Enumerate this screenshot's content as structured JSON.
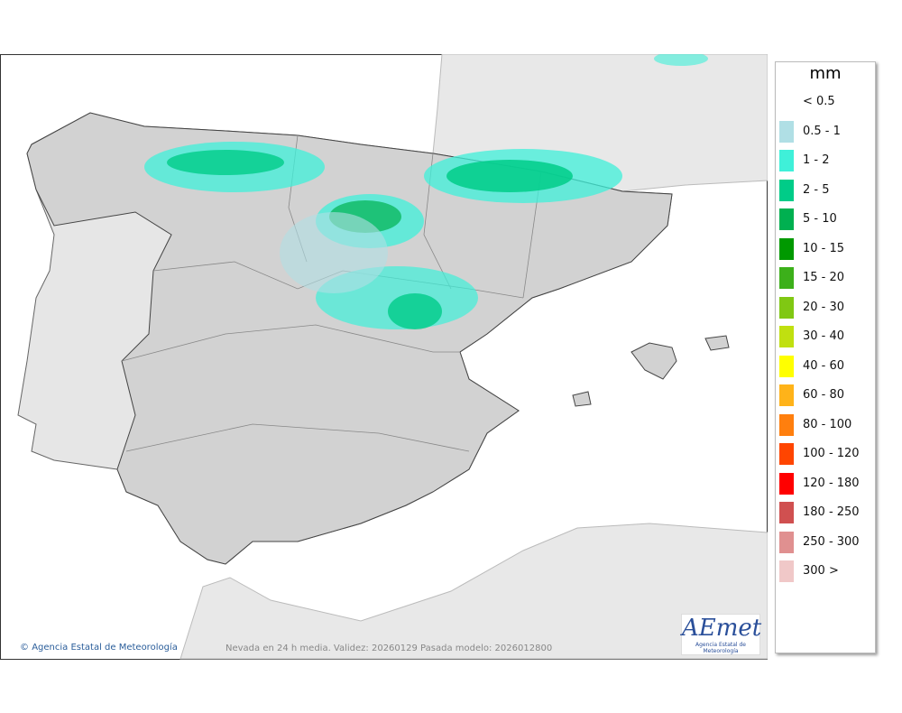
{
  "legend": {
    "title": "mm",
    "items": [
      {
        "label": "< 0.5"
      },
      {
        "label": "0.5 - 1",
        "color": "#b0dfe5"
      },
      {
        "label": "1 - 2",
        "color": "#3ff0d9"
      },
      {
        "label": "2 - 5",
        "color": "#00cc88"
      },
      {
        "label": "5 - 10",
        "color": "#00b050"
      },
      {
        "label": "10 - 15",
        "color": "#009900"
      },
      {
        "label": "15 - 20",
        "color": "#3cb01a"
      },
      {
        "label": "20 - 30",
        "color": "#80c813"
      },
      {
        "label": "30 - 40",
        "color": "#c0e010"
      },
      {
        "label": "40 - 60",
        "color": "#ffff00"
      },
      {
        "label": "60 - 80",
        "color": "#ffb319"
      },
      {
        "label": "80 - 100",
        "color": "#ff7f0e"
      },
      {
        "label": "100 - 120",
        "color": "#ff4500"
      },
      {
        "label": "120 - 180",
        "color": "#ff0000"
      },
      {
        "label": "180 - 250",
        "color": "#d05050"
      },
      {
        "label": "250 - 300",
        "color": "#e09090"
      },
      {
        "label": "300 >",
        "color": "#f0c8c8"
      }
    ]
  },
  "credit": "Agencia Estatal de Meteorología",
  "caption": "Nevada en 24 h media. Validez: 20260129 Pasada modelo: 2026012800",
  "logo": {
    "text": "AEmet",
    "subtitle": "Agencia Estatal de Meteorología"
  }
}
